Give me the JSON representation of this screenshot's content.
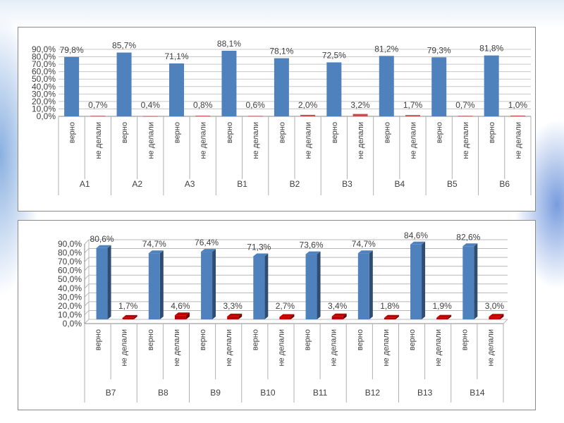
{
  "chart_data": [
    {
      "type": "bar",
      "title": "",
      "xlabel": "",
      "ylabel": "",
      "ylim": [
        0,
        90
      ],
      "yticks": [
        "0,0%",
        "10,0%",
        "20,0%",
        "30,0%",
        "40,0%",
        "50,0%",
        "60,0%",
        "70,0%",
        "80,0%",
        "90,0%"
      ],
      "grid": true,
      "style": "2d",
      "subcategories": [
        "верно",
        "не делали"
      ],
      "categories": [
        "A1",
        "A2",
        "A3",
        "B1",
        "B2",
        "B3",
        "B4",
        "B5",
        "B6"
      ],
      "series": [
        {
          "name": "верно",
          "color": "#4f81bd",
          "values": [
            79.8,
            85.7,
            71.1,
            88.1,
            78.1,
            72.5,
            81.2,
            79.3,
            81.8
          ]
        },
        {
          "name": "не делали",
          "color": "#c0504d",
          "values": [
            0.7,
            0.4,
            0.8,
            0.6,
            2.0,
            3.2,
            1.7,
            0.7,
            1.0
          ]
        }
      ]
    },
    {
      "type": "bar",
      "title": "",
      "xlabel": "",
      "ylabel": "",
      "ylim": [
        0,
        90
      ],
      "yticks": [
        "0,0%",
        "10,0%",
        "20,0%",
        "30,0%",
        "40,0%",
        "50,0%",
        "60,0%",
        "70,0%",
        "80,0%",
        "90,0%"
      ],
      "grid": true,
      "style": "3d",
      "subcategories": [
        "верно",
        "не делали"
      ],
      "categories": [
        "B7",
        "B8",
        "B9",
        "B10",
        "B11",
        "B12",
        "B13",
        "B14"
      ],
      "series": [
        {
          "name": "верно",
          "color": "#4f81bd",
          "values": [
            80.6,
            74.7,
            76.4,
            71.3,
            73.6,
            74.7,
            84.6,
            82.6
          ]
        },
        {
          "name": "не делали",
          "color": "#c00000",
          "values": [
            1.7,
            4.6,
            3.3,
            2.7,
            3.4,
            1.8,
            1.9,
            3.0
          ]
        }
      ]
    }
  ]
}
